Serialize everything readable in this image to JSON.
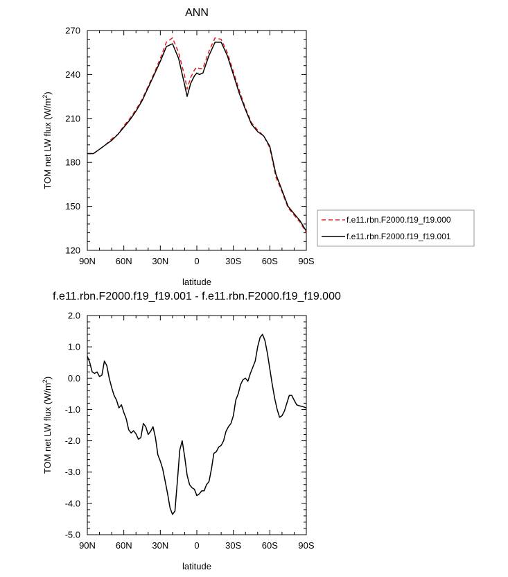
{
  "chart_data": [
    {
      "type": "line",
      "title": "ANN",
      "xlabel": "latitude",
      "ylabel_prefix": "TOM net LW flux (W/m",
      "ylabel_sup": "2",
      "ylabel_suffix": ")",
      "xlim": [
        90,
        -90
      ],
      "ylim": [
        120,
        270
      ],
      "x_ticks": [
        90,
        60,
        30,
        0,
        -30,
        -60,
        -90
      ],
      "x_tick_labels": [
        "90N",
        "60N",
        "30N",
        "0",
        "30S",
        "60S",
        "90S"
      ],
      "y_ticks": [
        120,
        150,
        180,
        210,
        240,
        270
      ],
      "y_tick_labels": [
        "120",
        "150",
        "180",
        "210",
        "240",
        "270"
      ],
      "legend_position": "outside-right",
      "series": [
        {
          "name": "f.e11.rbn.F2000.f19_f19.000",
          "color": "#e41a1c",
          "dash": "dashed",
          "x": [
            90,
            85,
            80,
            75,
            70,
            65,
            60,
            55,
            50,
            45,
            40,
            35,
            30,
            25,
            20,
            15,
            10,
            8,
            5,
            2,
            0,
            -2,
            -5,
            -10,
            -15,
            -20,
            -25,
            -30,
            -35,
            -40,
            -45,
            -50,
            -55,
            -60,
            -65,
            -70,
            -75,
            -80,
            -85,
            -90
          ],
          "y": [
            186,
            186,
            189,
            192,
            196,
            199,
            205,
            210,
            216,
            223,
            232,
            241,
            251,
            262,
            265,
            255,
            239,
            230,
            238,
            243,
            245,
            244,
            244,
            256,
            265,
            264,
            255,
            242,
            229,
            217,
            207,
            202,
            198,
            190,
            170,
            160,
            149,
            144,
            139,
            132
          ],
          "note": ""
        },
        {
          "name": "f.e11.rbn.F2000.f19_f19.001",
          "color": "#000000",
          "dash": "solid",
          "x": [
            90,
            85,
            80,
            75,
            70,
            65,
            60,
            55,
            50,
            45,
            40,
            35,
            30,
            25,
            20,
            15,
            10,
            8,
            5,
            2,
            0,
            -2,
            -5,
            -10,
            -15,
            -20,
            -25,
            -30,
            -35,
            -40,
            -45,
            -50,
            -55,
            -60,
            -65,
            -70,
            -75,
            -80,
            -85,
            -90
          ],
          "y": [
            186,
            186,
            189,
            192,
            195,
            199,
            204,
            209,
            215,
            222,
            231,
            240,
            249,
            259,
            261,
            251,
            233,
            225,
            234,
            239,
            241,
            240,
            241,
            253,
            262,
            262,
            253,
            240,
            227,
            216,
            206,
            201,
            198,
            191,
            172,
            161,
            150,
            145,
            140,
            133
          ]
        }
      ]
    },
    {
      "type": "line",
      "title": "f.e11.rbn.F2000.f19_f19.001 - f.e11.rbn.F2000.f19_f19.000",
      "xlabel": "latitude",
      "ylabel_prefix": "TOM net LW flux (W/m",
      "ylabel_sup": "2",
      "ylabel_suffix": ")",
      "xlim": [
        90,
        -90
      ],
      "ylim": [
        -5.0,
        2.0
      ],
      "x_ticks": [
        90,
        60,
        30,
        0,
        -30,
        -60,
        -90
      ],
      "x_tick_labels": [
        "90N",
        "60N",
        "30N",
        "0",
        "30S",
        "60S",
        "90S"
      ],
      "y_ticks": [
        -5,
        -4,
        -3,
        -2,
        -1,
        0,
        1,
        2
      ],
      "y_tick_labels": [
        "-5.0",
        "-4.0",
        "-3.0",
        "-2.0",
        "-1.0",
        "0.0",
        "1.0",
        "2.0"
      ],
      "series": [
        {
          "color": "#000000",
          "dash": "solid",
          "x": [
            90,
            88,
            86,
            84,
            82,
            80,
            78,
            76,
            74,
            72,
            70,
            68,
            66,
            64,
            62,
            60,
            58,
            56,
            54,
            52,
            50,
            48,
            46,
            44,
            42,
            40,
            38,
            36,
            34,
            32,
            30,
            28,
            26,
            24,
            22,
            20,
            18,
            16,
            14,
            12,
            10,
            8,
            6,
            4,
            2,
            0,
            -2,
            -4,
            -6,
            -8,
            -10,
            -12,
            -14,
            -16,
            -18,
            -20,
            -22,
            -24,
            -26,
            -28,
            -30,
            -32,
            -34,
            -36,
            -38,
            -40,
            -42,
            -44,
            -46,
            -48,
            -50,
            -52,
            -54,
            -56,
            -58,
            -60,
            -62,
            -64,
            -66,
            -68,
            -70,
            -72,
            -74,
            -76,
            -78,
            -80,
            -82,
            -84,
            -86,
            -88,
            -90
          ],
          "y": [
            0.7,
            0.5,
            0.2,
            0.15,
            0.2,
            0.05,
            0.1,
            0.55,
            0.4,
            0.0,
            -0.3,
            -0.55,
            -0.7,
            -0.95,
            -0.85,
            -1.1,
            -1.3,
            -1.65,
            -1.75,
            -1.68,
            -1.78,
            -1.95,
            -1.9,
            -1.45,
            -1.55,
            -1.8,
            -1.7,
            -1.55,
            -1.9,
            -2.45,
            -2.65,
            -2.9,
            -3.3,
            -3.7,
            -4.15,
            -4.35,
            -4.25,
            -3.3,
            -2.3,
            -2.0,
            -2.5,
            -3.1,
            -3.4,
            -3.5,
            -3.55,
            -3.75,
            -3.7,
            -3.6,
            -3.6,
            -3.4,
            -3.3,
            -2.9,
            -2.4,
            -2.35,
            -2.2,
            -2.15,
            -2.0,
            -1.7,
            -1.55,
            -1.45,
            -1.2,
            -0.7,
            -0.5,
            -0.2,
            -0.05,
            0.0,
            -0.1,
            0.15,
            0.35,
            0.55,
            1.0,
            1.3,
            1.4,
            1.2,
            0.8,
            0.3,
            -0.2,
            -0.65,
            -1.0,
            -1.25,
            -1.2,
            -1.05,
            -0.8,
            -0.55,
            -0.55,
            -0.7,
            -0.85,
            -0.88,
            -0.9,
            -0.92,
            -0.95
          ]
        }
      ]
    }
  ]
}
